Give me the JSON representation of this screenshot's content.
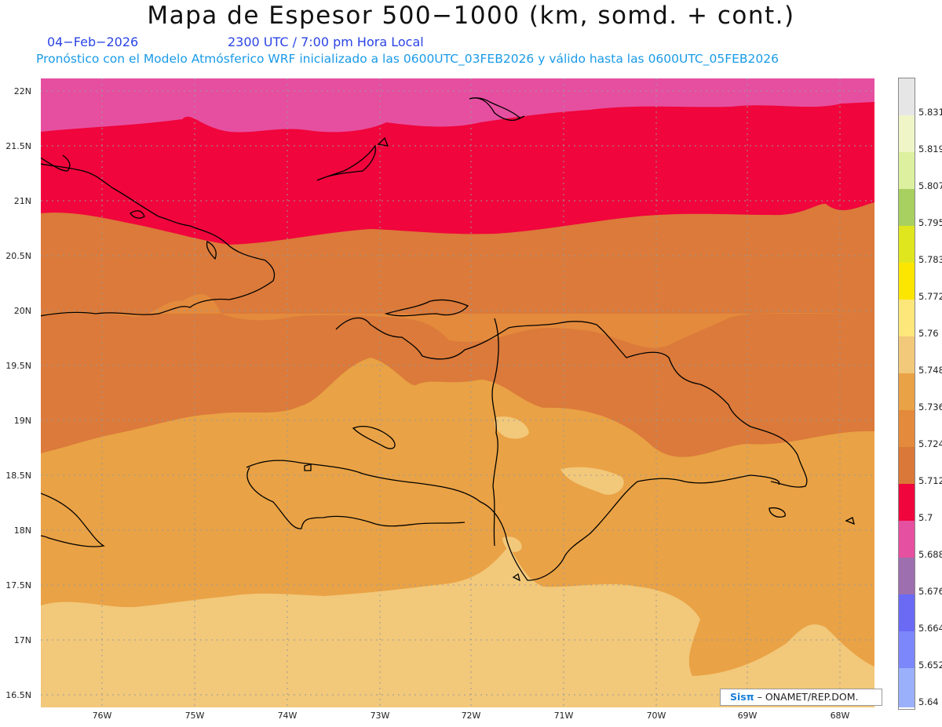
{
  "header": {
    "title": "Mapa de Espesor 500−1000 (km, somd. + cont.)",
    "date": "04−Feb−2026",
    "time": "2300 UTC / 7:00 pm Hora Local",
    "info": "Pronóstico con el Modelo Atmósferico WRF inicializado a las 0600UTC_03FEB2026 y válido hasta las  0600UTC_05FEB2026"
  },
  "lat_labels": [
    "22N",
    "21.5N",
    "21N",
    "20.5N",
    "20N",
    "19.5N",
    "19N",
    "18.5N",
    "18N",
    "17.5N",
    "17N",
    "16.5N"
  ],
  "lon_labels": [
    "76W",
    "75W",
    "74W",
    "73W",
    "72W",
    "71W",
    "70W",
    "69W",
    "68W"
  ],
  "legend": {
    "levels": [
      "5.831",
      "5.819",
      "5.807",
      "5.795",
      "5.783",
      "5.772",
      "5.76",
      "5.748",
      "5.736",
      "5.724",
      "5.712",
      "5.7",
      "5.688",
      "5.676",
      "5.664",
      "5.652",
      "5.64"
    ],
    "colors": [
      "#e6e6e6",
      "#f0f5c8",
      "#dcf0a0",
      "#a8d060",
      "#e0e61e",
      "#fce600",
      "#fde67a",
      "#f2c87a",
      "#e9a245",
      "#e48a3c",
      "#d97838",
      "#f0053c",
      "#e650a0",
      "#9d6fae",
      "#6a6af5",
      "#7b87fa",
      "#9bb0fb",
      "#c0ccf8"
    ]
  },
  "credit": {
    "logo": "Sisπ",
    "text": "– ONAMET/REP.DOM."
  }
}
